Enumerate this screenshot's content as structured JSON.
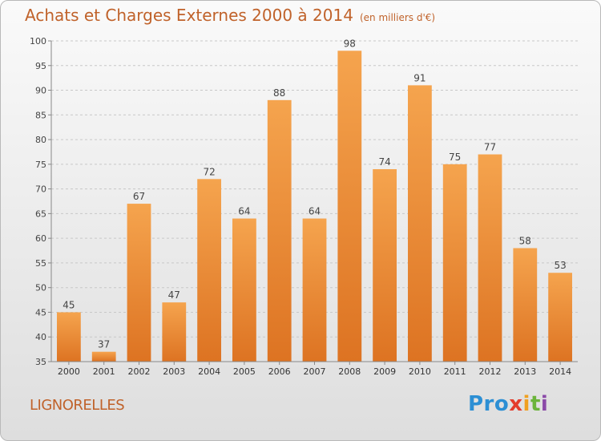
{
  "header": {
    "title": "Achats et Charges Externes 2000 à 2014",
    "subtitle": "(en milliers d'€)"
  },
  "footer": {
    "town": "LIGNORELLES",
    "logo_parts": [
      "Pro",
      "x",
      "i",
      "t",
      "i"
    ]
  },
  "colors": {
    "bar_top": "#f5a44e",
    "bar_bottom": "#dd7322",
    "title": "#c0622a",
    "grid": "#c8c8c8"
  },
  "chart_data": {
    "type": "bar",
    "categories": [
      "2000",
      "2001",
      "2002",
      "2003",
      "2004",
      "2005",
      "2006",
      "2007",
      "2008",
      "2009",
      "2010",
      "2011",
      "2012",
      "2013",
      "2014"
    ],
    "values": [
      45,
      37,
      67,
      47,
      72,
      64,
      88,
      64,
      98,
      74,
      91,
      75,
      77,
      58,
      53
    ],
    "yticks": [
      35,
      40,
      45,
      50,
      55,
      60,
      65,
      70,
      75,
      80,
      85,
      90,
      95,
      100
    ],
    "ylim": [
      35,
      100
    ],
    "grid": "horizontal dashed",
    "title": "Achats et Charges Externes 2000 à 2014",
    "xlabel": "",
    "ylabel": ""
  }
}
